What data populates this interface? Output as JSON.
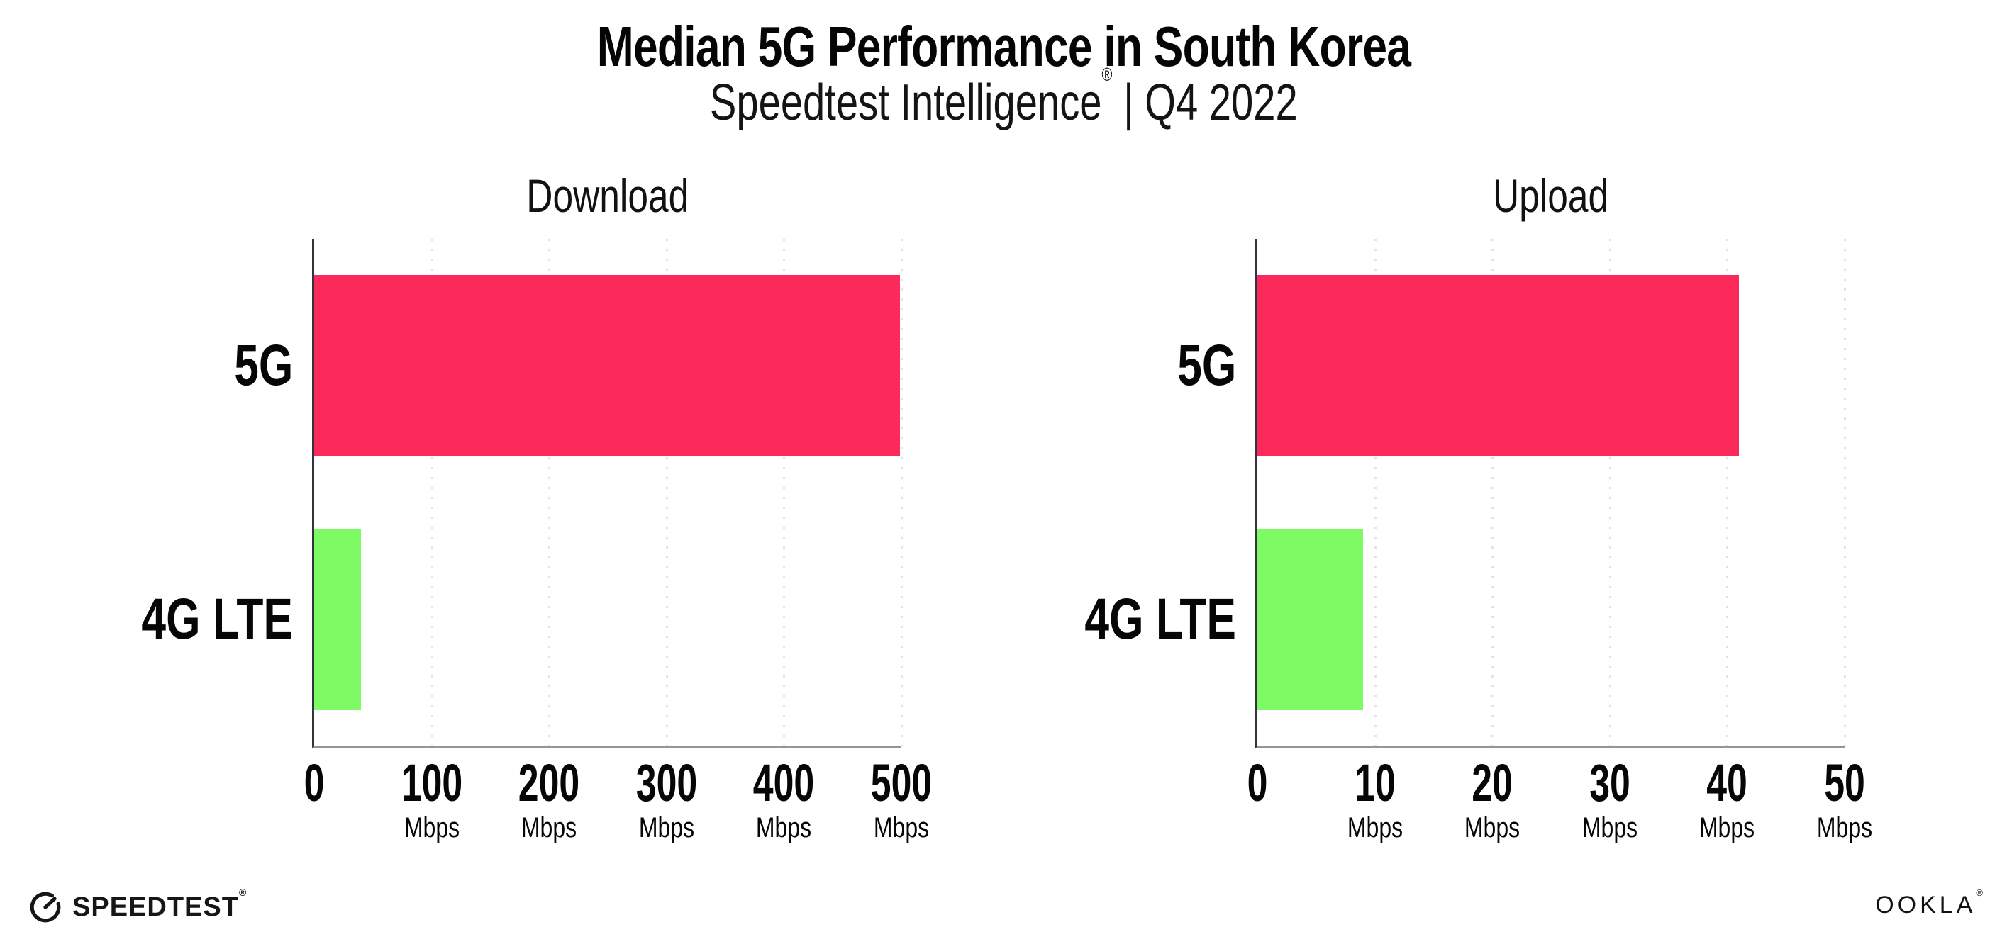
{
  "title": "Median 5G Performance in South Korea",
  "subtitle": {
    "brand": "Speedtest Intelligence",
    "reg": "®",
    "separator": " | ",
    "period": "Q4 2022"
  },
  "footer": {
    "speedtest_label": "SPEEDTEST",
    "speedtest_reg": "®",
    "ookla_label": "OOKLA",
    "ookla_reg": "®"
  },
  "colors": {
    "bar_5g": "#FB2A5A",
    "bar_4g_lte": "#7EFA64",
    "gridline": "#E1E2EC",
    "axis_left": "#33333D",
    "axis_bottom": "#94949C",
    "text": "#060606"
  },
  "chart_data": [
    {
      "type": "bar",
      "orientation": "horizontal",
      "title": "Download",
      "categories": [
        "5G",
        "4G LTE"
      ],
      "values": [
        499,
        40
      ],
      "unit": "Mbps",
      "xlim": [
        0,
        500
      ],
      "xticks": [
        0,
        100,
        200,
        300,
        400,
        500
      ],
      "bar_colors": [
        "#FB2A5A",
        "#7EFA64"
      ],
      "grid": "dotted-vertical",
      "legend": "none"
    },
    {
      "type": "bar",
      "orientation": "horizontal",
      "title": "Upload",
      "categories": [
        "5G",
        "4G LTE"
      ],
      "values": [
        41,
        9
      ],
      "unit": "Mbps",
      "xlim": [
        0,
        50
      ],
      "xticks": [
        0,
        10,
        20,
        30,
        40,
        50
      ],
      "bar_colors": [
        "#FB2A5A",
        "#7EFA64"
      ],
      "grid": "dotted-vertical",
      "legend": "none"
    }
  ]
}
